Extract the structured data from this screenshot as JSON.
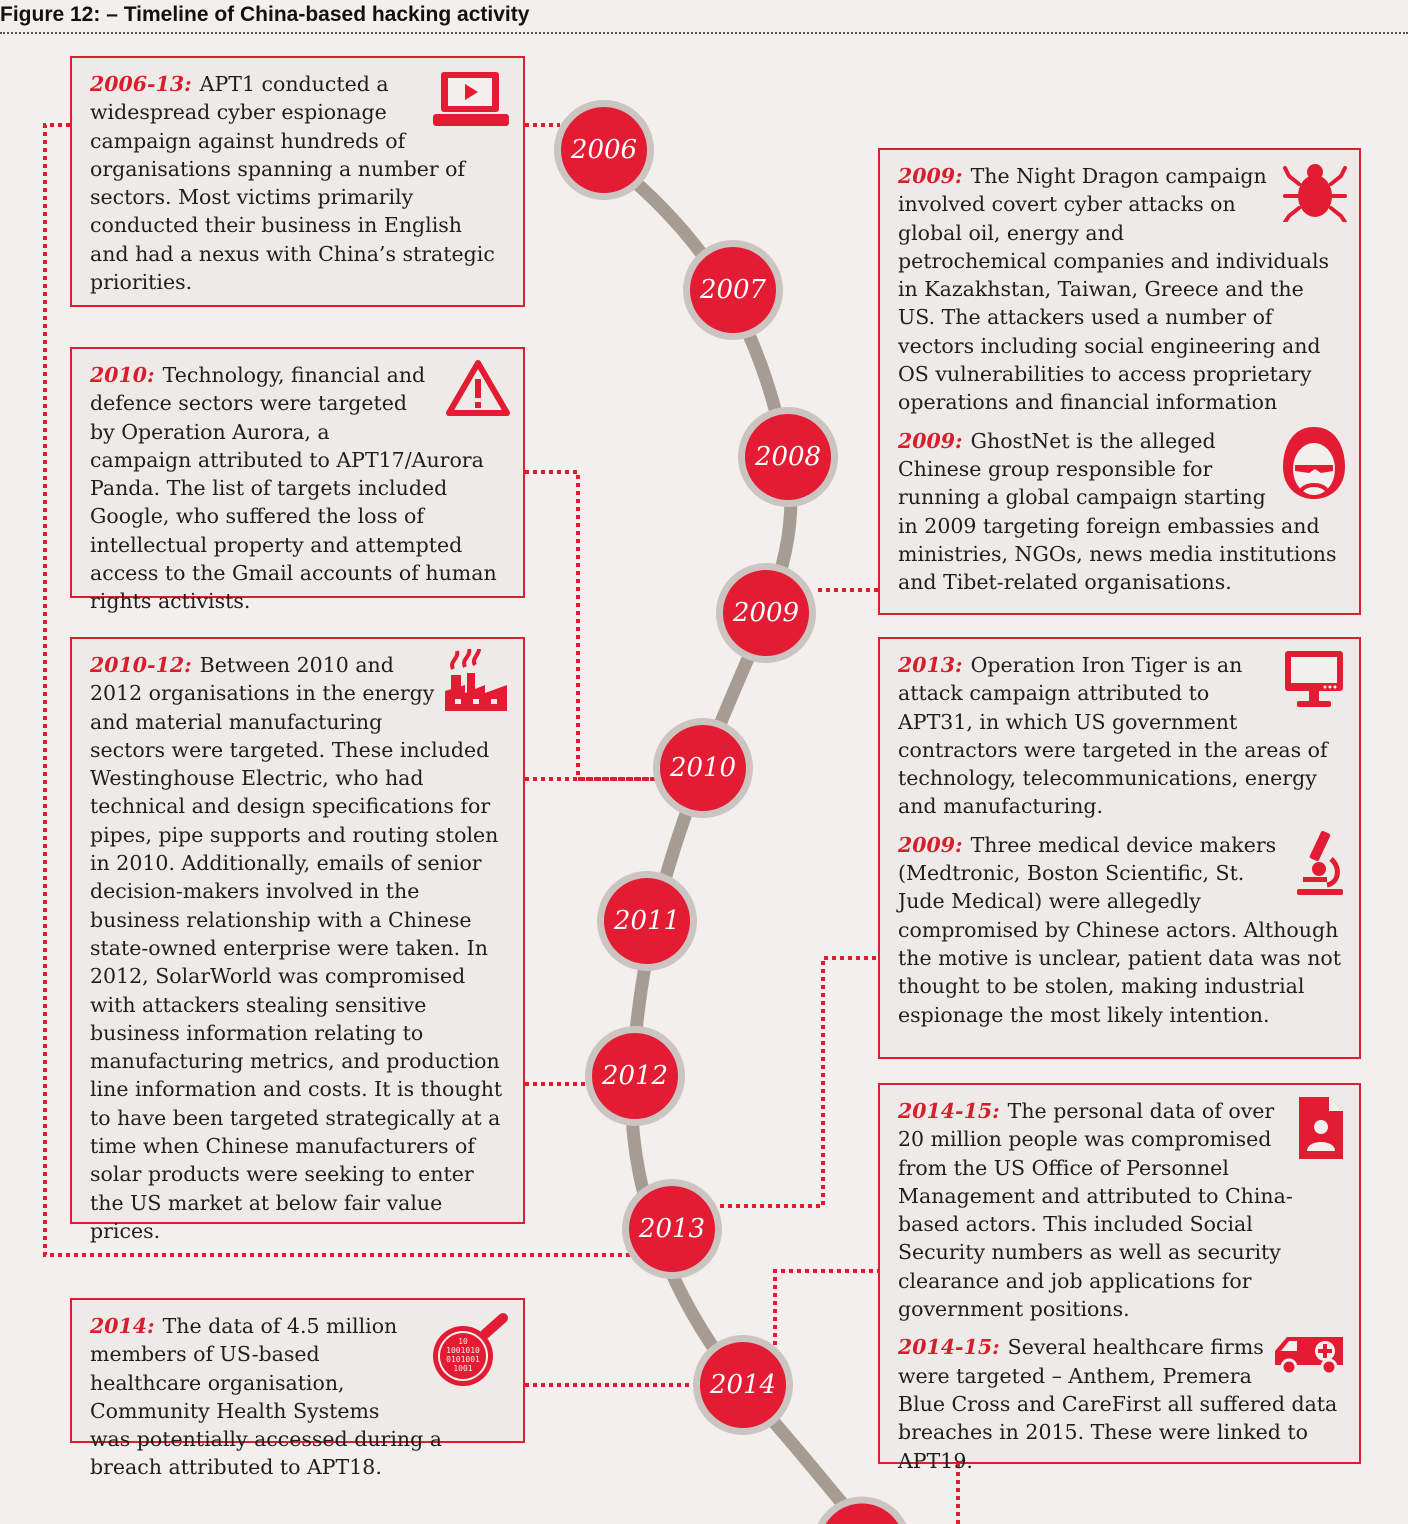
{
  "figure_title": "Figure 12: – Timeline of China-based hacking activity",
  "years": [
    "2006",
    "2007",
    "2008",
    "2009",
    "2010",
    "2011",
    "2012",
    "2013",
    "2014"
  ],
  "colors": {
    "accent": "#e31b33",
    "timeline": "#a69c93",
    "box_border": "#dc1f2e",
    "background": "#f3efed"
  },
  "left_boxes": [
    {
      "entries": [
        {
          "year_label": "2006-13:",
          "icon": "laptop-video-icon",
          "text": "APT1 conducted a widespread cyber espionage campaign against hundreds of organisations spanning a number of sectors. Most victims primarily conducted their business in English and had a nexus with China’s strategic priorities."
        }
      ]
    },
    {
      "entries": [
        {
          "year_label": "2010:",
          "icon": "warning-triangle-icon",
          "text": "Technology, financial and defence sectors were targeted by Operation Aurora, a campaign attributed to APT17/Aurora Panda. The list of targets included Google, who suffered the loss of intellectual property and attempted access to the Gmail accounts of human rights activists."
        }
      ]
    },
    {
      "entries": [
        {
          "year_label": "2010-12:",
          "icon": "factory-icon",
          "text": "Between 2010 and 2012 organisations in the energy and material manufacturing sectors were targeted. These included Westinghouse Electric, who had technical and design specifications for pipes, pipe supports and routing stolen in 2010. Additionally, emails of senior decision-makers involved in the business relationship with a Chinese state-owned enterprise were taken. In 2012, SolarWorld was compromised with attackers stealing sensitive business information relating to manufacturing metrics, and production line information and costs. It is thought to have been targeted strategically at a time when Chinese manufacturers of solar products were seeking to enter the US market at below fair value prices."
        }
      ]
    },
    {
      "entries": [
        {
          "year_label": "2014:",
          "icon": "binary-magnifier-icon",
          "text": "The data of 4.5 million members of US-based healthcare organisation, Community Health Systems was potentially accessed during a breach attributed to APT18."
        }
      ]
    }
  ],
  "right_boxes": [
    {
      "entries": [
        {
          "year_label": "2009:",
          "icon": "bug-icon",
          "text": "The Night Dragon campaign involved covert cyber attacks on global oil, energy and petrochemical companies and individuals in Kazakhstan, Taiwan, Greece and the US. The attackers used a number of vectors including social engineering and OS vulnerabilities to access proprietary operations and financial information"
        },
        {
          "year_label": "2009:",
          "icon": "hooded-hacker-icon",
          "text": "GhostNet is the alleged Chinese group responsible for running a global campaign starting in 2009 targeting foreign embassies and ministries, NGOs, news media institutions and Tibet-related organisations."
        }
      ]
    },
    {
      "entries": [
        {
          "year_label": "2013:",
          "icon": "monitor-icon",
          "text": "Operation Iron Tiger is an attack campaign attributed to APT31, in which US government contractors were targeted in the areas of technology, telecommunications, energy and manufacturing."
        },
        {
          "year_label": "2009:",
          "icon": "microscope-icon",
          "text": "Three medical device makers (Medtronic, Boston Scientific, St. Jude Medical) were allegedly compromised by Chinese actors. Although the motive is unclear, patient data was not thought to be stolen, making industrial espionage the most likely intention."
        }
      ]
    },
    {
      "entries": [
        {
          "year_label": "2014-15:",
          "icon": "personnel-file-icon",
          "text": "The personal data of over 20 million people was compromised from the US Office of Personnel Management and attributed to China-based actors. This included Social Security numbers as well as security clearance and job applications for government positions."
        },
        {
          "year_label": "2014-15:",
          "icon": "ambulance-icon",
          "text": "Several healthcare firms were targeted – Anthem, Premera Blue Cross and CareFirst all suffered data breaches in 2015. These were linked to APT19."
        }
      ]
    }
  ]
}
